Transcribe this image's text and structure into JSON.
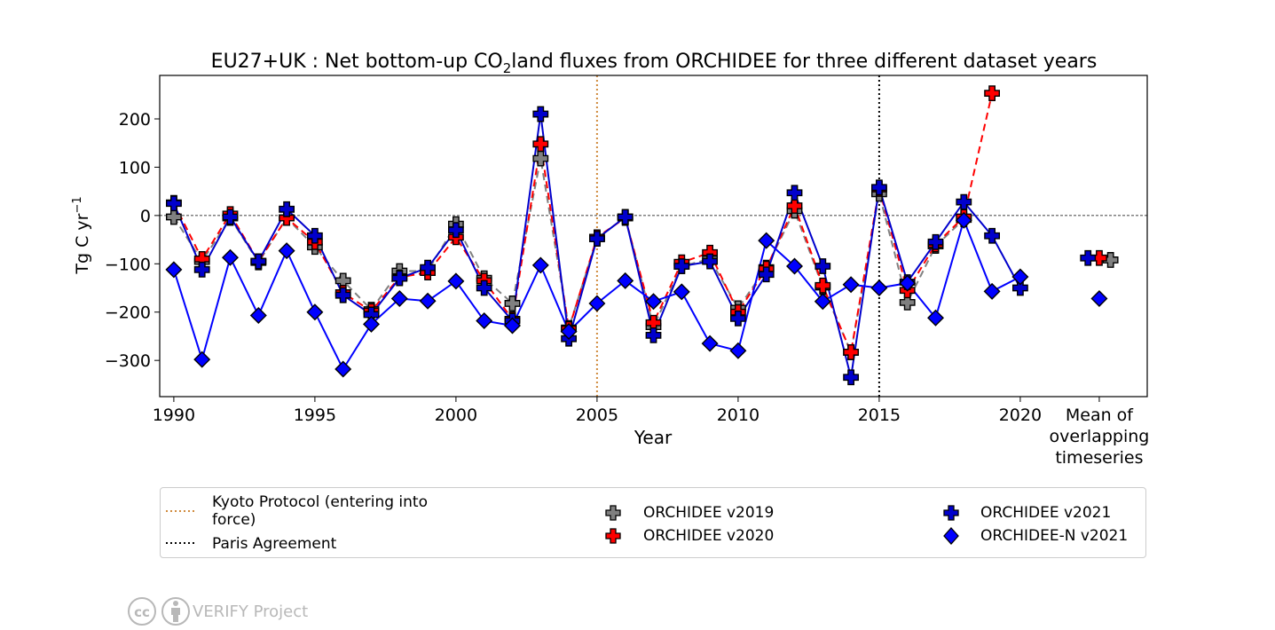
{
  "chart_data": {
    "type": "line",
    "title_prefix": "EU27+UK : Net bottom-up CO",
    "title_sub": "2",
    "title_suffix": "land fluxes from ORCHIDEE for three different dataset years",
    "xlabel": "Year",
    "ylabel": "Tg C yr",
    "ylabel_sup": "−1",
    "xlim": [
      1989.5,
      2024.5
    ],
    "ylim": [
      -375,
      290
    ],
    "xticks": [
      1990,
      1995,
      2000,
      2005,
      2010,
      2015,
      2020
    ],
    "yticks": [
      -300,
      -200,
      -100,
      0,
      100,
      200
    ],
    "ytick_labels": [
      "−300",
      "−200",
      "−100",
      "0",
      "100",
      "200"
    ],
    "mean_label": [
      "Mean of",
      "overlapping",
      "timeseries"
    ],
    "vlines": [
      {
        "x": 2005,
        "label": "Kyoto Protocol (entering into force)",
        "label_lines": [
          "Kyoto Protocol (entering into",
          "force)"
        ],
        "color": "#d08a3c"
      },
      {
        "x": 2015,
        "label": "Paris Agreement",
        "label_lines": [
          "Paris Agreement"
        ],
        "color": "#000000"
      }
    ],
    "series": [
      {
        "name": "ORCHIDEE v2019",
        "color": "#808080",
        "line": "dashed",
        "marker": "plus",
        "x": [
          1990,
          1991,
          1992,
          1993,
          1994,
          1995,
          1996,
          1997,
          1998,
          1999,
          2000,
          2001,
          2002,
          2003,
          2004,
          2005,
          2006,
          2007,
          2008,
          2009,
          2010,
          2011,
          2012,
          2013,
          2014,
          2015,
          2016,
          2017,
          2018
        ],
        "values": [
          -3,
          -95,
          -5,
          -97,
          -5,
          -65,
          -135,
          -195,
          -115,
          -115,
          -18,
          -130,
          -182,
          118,
          -233,
          -48,
          -3,
          -230,
          -105,
          -90,
          -192,
          -108,
          10,
          -148,
          -283,
          45,
          -180,
          -63,
          -8
        ],
        "mean": -92
      },
      {
        "name": "ORCHIDEE v2020",
        "color": "#ff0000",
        "line": "dashed",
        "marker": "plus",
        "x": [
          1990,
          1991,
          1992,
          1993,
          1994,
          1995,
          1996,
          1997,
          1998,
          1999,
          2000,
          2001,
          2002,
          2003,
          2004,
          2005,
          2006,
          2007,
          2008,
          2009,
          2010,
          2011,
          2012,
          2013,
          2014,
          2015,
          2016,
          2017,
          2018,
          2019
        ],
        "values": [
          26,
          -90,
          3,
          -95,
          -5,
          -55,
          -160,
          -198,
          -128,
          -118,
          -45,
          -135,
          -215,
          148,
          -235,
          -45,
          -5,
          -222,
          -97,
          -77,
          -200,
          -110,
          20,
          -145,
          -283,
          55,
          -155,
          -60,
          -3,
          253
        ],
        "mean": -88
      },
      {
        "name": "ORCHIDEE v2021",
        "color": "#0000cc",
        "line": "solid",
        "marker": "plus",
        "x": [
          1990,
          1991,
          1992,
          1993,
          1994,
          1995,
          1996,
          1997,
          1998,
          1999,
          2000,
          2001,
          2002,
          2003,
          2004,
          2005,
          2006,
          2007,
          2008,
          2009,
          2010,
          2011,
          2012,
          2013,
          2014,
          2015,
          2016,
          2017,
          2018,
          2019,
          2020
        ],
        "values": [
          25,
          -112,
          -3,
          -95,
          13,
          -42,
          -165,
          -205,
          -130,
          -108,
          -30,
          -150,
          -218,
          210,
          -255,
          -48,
          -3,
          -248,
          -105,
          -95,
          -213,
          -122,
          47,
          -105,
          -335,
          58,
          -138,
          -55,
          28,
          -42,
          -150
        ],
        "mean": -88
      },
      {
        "name": "ORCHIDEE-N v2021",
        "color": "#0000ff",
        "line": "solid",
        "marker": "diamond",
        "x": [
          1990,
          1991,
          1992,
          1993,
          1994,
          1995,
          1996,
          1997,
          1998,
          1999,
          2000,
          2001,
          2002,
          2003,
          2004,
          2005,
          2006,
          2007,
          2008,
          2009,
          2010,
          2011,
          2012,
          2013,
          2014,
          2015,
          2016,
          2017,
          2018,
          2019,
          2020
        ],
        "values": [
          -112,
          -298,
          -87,
          -207,
          -73,
          -200,
          -318,
          -225,
          -172,
          -177,
          -136,
          -218,
          -228,
          -103,
          -240,
          -182,
          -135,
          -178,
          -158,
          -265,
          -280,
          -52,
          -105,
          -178,
          -143,
          -150,
          -140,
          -212,
          -10,
          -157,
          -127
        ],
        "mean": -172
      }
    ]
  },
  "footer": {
    "license_icon": "cc-by-icon",
    "cc_text": "cc",
    "text": "VERIFY Project"
  }
}
